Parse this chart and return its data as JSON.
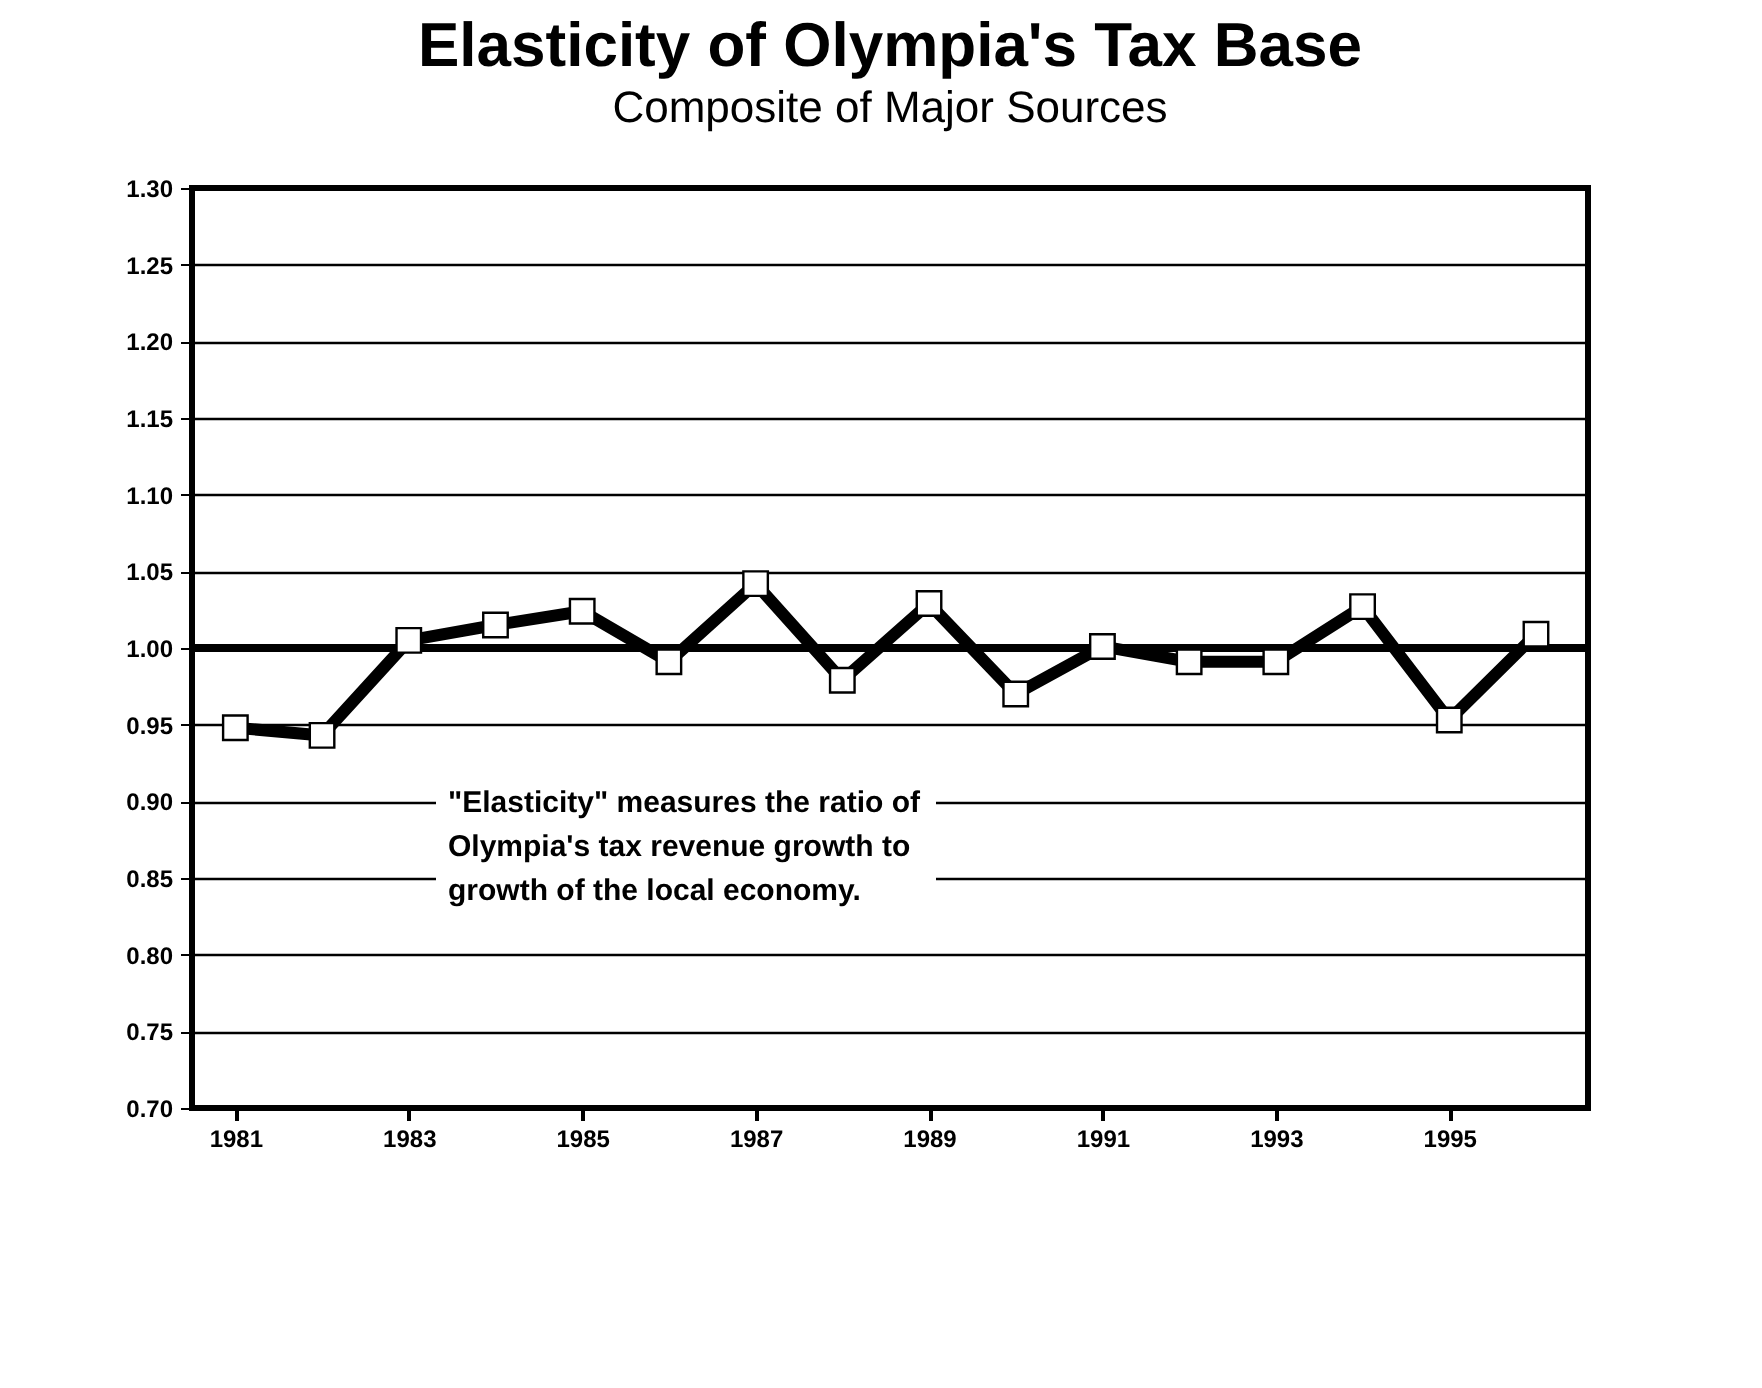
{
  "chart_data": {
    "type": "line",
    "title": "Elasticity of Olympia's Tax Base",
    "subtitle": "Composite of Major Sources",
    "annotations": [
      "\"Elasticity\" measures the ratio of\nOlympia's tax revenue growth to\ngrowth of the local economy."
    ],
    "x": [
      1981,
      1982,
      1983,
      1984,
      1985,
      1986,
      1987,
      1988,
      1989,
      1990,
      1991,
      1992,
      1993,
      1994,
      1995,
      1996
    ],
    "series": [
      {
        "color": "#000000",
        "values": [
          0.948,
          0.943,
          1.005,
          1.015,
          1.024,
          0.991,
          1.042,
          0.979,
          1.029,
          0.97,
          1.001,
          0.991,
          0.991,
          1.027,
          0.953,
          1.009
        ]
      }
    ],
    "xlim": [
      1980.5,
      1996.6
    ],
    "xticks": [
      1981,
      1983,
      1985,
      1987,
      1989,
      1991,
      1993,
      1995
    ],
    "ylim": [
      0.7,
      1.3
    ],
    "yticks": [
      {
        "value": 0.7,
        "label": "0.70"
      },
      {
        "value": 0.75,
        "label": "0.75"
      },
      {
        "value": 0.8,
        "label": "0.80"
      },
      {
        "value": 0.85,
        "label": "0.85"
      },
      {
        "value": 0.9,
        "label": "0.90"
      },
      {
        "value": 0.95,
        "label": "0.95"
      },
      {
        "value": 1.0,
        "label": "1.00"
      },
      {
        "value": 1.05,
        "label": "1.05"
      },
      {
        "value": 1.1,
        "label": "1.10"
      },
      {
        "value": 1.15,
        "label": "1.15"
      },
      {
        "value": 1.2,
        "label": "1.20"
      },
      {
        "value": 1.25,
        "label": "1.25"
      },
      {
        "value": 1.3,
        "label": "1.30"
      }
    ],
    "ref_lines": [
      {
        "axis": "y",
        "value": 1.0,
        "color": "#000000"
      }
    ],
    "grid": "y",
    "marker": "square",
    "line_style": "solid"
  }
}
